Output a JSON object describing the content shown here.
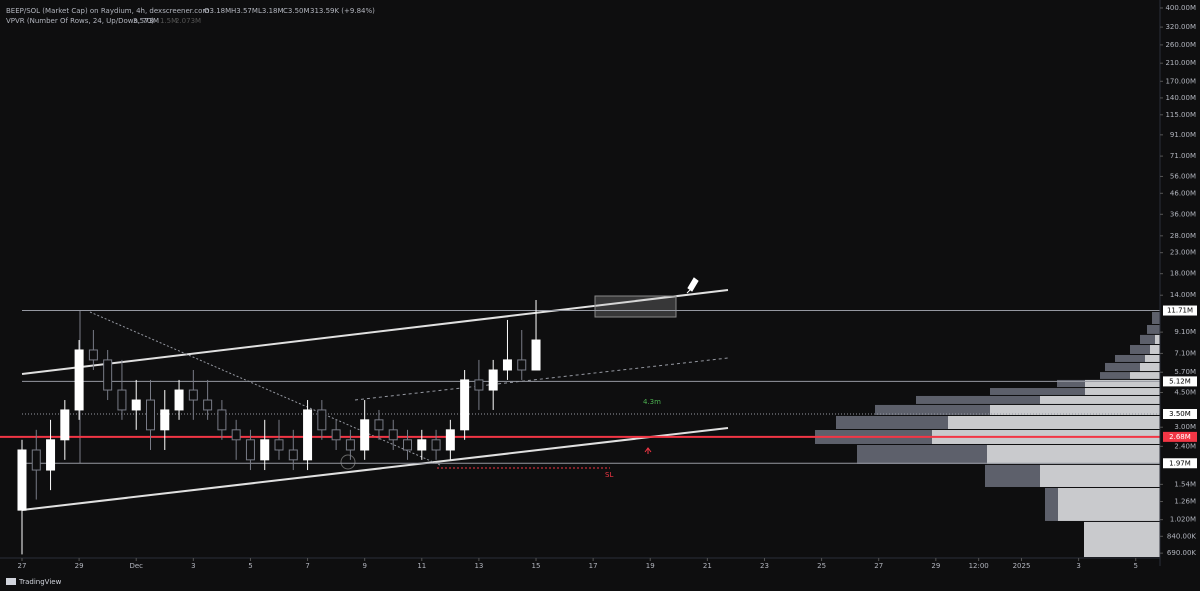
{
  "chart_data": {
    "type": "candlestick",
    "header": {
      "symbol": "BEEP/SOL (Market Cap) on Raydium, 4h, dexscreener.com",
      "open": "O3.18M",
      "high": "H3.57M",
      "low": "L3.18M",
      "close": "C3.50M",
      "change": "313.59K (+9.84%)"
    },
    "indicator": {
      "name": "VPVR (Number Of Rows, 24, Up/Down, 70)",
      "values": [
        "3.573M",
        "1.5M",
        "2.073M"
      ]
    },
    "brand": "TradingView",
    "log_scale": true,
    "grid": false,
    "up_color": "#ffffff",
    "down_color": "#787b86",
    "ylim": [
      652000,
      439000000
    ],
    "xlim": [
      -0.77,
      39.85
    ],
    "yticks": [
      {
        "value": 400000000,
        "label": "400.00M"
      },
      {
        "value": 320000000,
        "label": "320.00M"
      },
      {
        "value": 260000000,
        "label": "260.00M"
      },
      {
        "value": 210000000,
        "label": "210.00M"
      },
      {
        "value": 170000000,
        "label": "170.00M"
      },
      {
        "value": 140000000,
        "label": "140.00M"
      },
      {
        "value": 115000000,
        "label": "115.00M"
      },
      {
        "value": 91000000,
        "label": "91.00M"
      },
      {
        "value": 71000000,
        "label": "71.00M"
      },
      {
        "value": 56000000,
        "label": "56.00M"
      },
      {
        "value": 46000000,
        "label": "46.00M"
      },
      {
        "value": 36000000,
        "label": "36.00M"
      },
      {
        "value": 28000000,
        "label": "28.00M"
      },
      {
        "value": 23000000,
        "label": "23.00M"
      },
      {
        "value": 18000000,
        "label": "18.00M"
      },
      {
        "value": 14000000,
        "label": "14.00M"
      },
      {
        "value": 9100000,
        "label": "9.10M"
      },
      {
        "value": 7100000,
        "label": "7.10M"
      },
      {
        "value": 5700000,
        "label": "5.70M"
      },
      {
        "value": 4500000,
        "label": "4.50M"
      },
      {
        "value": 3000000,
        "label": "3.00M"
      },
      {
        "value": 2400000,
        "label": "2.40M"
      },
      {
        "value": 1540000,
        "label": "1.54M"
      },
      {
        "value": 1260000,
        "label": "1.26M"
      },
      {
        "value": 1020000,
        "label": "1.020M"
      },
      {
        "value": 840000,
        "label": "840.00K"
      },
      {
        "value": 690000,
        "label": "690.00K"
      }
    ],
    "xticks": [
      {
        "value": 0,
        "label": "27"
      },
      {
        "value": 2,
        "label": "29"
      },
      {
        "value": 4,
        "label": "Dec"
      },
      {
        "value": 6,
        "label": "3"
      },
      {
        "value": 8,
        "label": "5"
      },
      {
        "value": 10,
        "label": "7"
      },
      {
        "value": 12,
        "label": "9"
      },
      {
        "value": 14,
        "label": "11"
      },
      {
        "value": 16,
        "label": "13"
      },
      {
        "value": 18,
        "label": "15"
      },
      {
        "value": 20,
        "label": "17"
      },
      {
        "value": 22,
        "label": "19"
      },
      {
        "value": 24,
        "label": "21"
      },
      {
        "value": 26,
        "label": "23"
      },
      {
        "value": 28,
        "label": "25"
      },
      {
        "value": 30,
        "label": "27"
      },
      {
        "value": 32,
        "label": "29"
      },
      {
        "value": 33.5,
        "label": "12:00"
      },
      {
        "value": 35,
        "label": "2025"
      },
      {
        "value": 37,
        "label": "3"
      },
      {
        "value": 39,
        "label": "5"
      }
    ],
    "x": [
      0,
      0.5,
      1,
      1.5,
      2,
      2.5,
      3,
      3.5,
      4,
      4.5,
      5,
      5.5,
      6,
      6.5,
      7,
      7.5,
      8,
      8.5,
      9,
      9.5,
      10,
      10.5,
      11,
      11.5,
      12,
      12.5,
      13,
      13.5,
      14,
      14.5,
      15,
      15.5,
      16,
      16.5,
      17,
      17.5,
      18
    ],
    "open": [
      1140000,
      2300000,
      1820000,
      2590000,
      3670000,
      7390000,
      6580000,
      4630000,
      3670000,
      4120000,
      2910000,
      3670000,
      4630000,
      4120000,
      3670000,
      2910000,
      2590000,
      2050000,
      2590000,
      2300000,
      2050000,
      3670000,
      2910000,
      2590000,
      2300000,
      3270000,
      2910000,
      2590000,
      2300000,
      2590000,
      2300000,
      2910000,
      5210000,
      4630000,
      5850000,
      6580000,
      5850000
    ],
    "high": [
      2590000,
      2910000,
      3270000,
      4120000,
      8300000,
      9330000,
      7390000,
      6580000,
      5210000,
      5210000,
      4630000,
      5210000,
      5850000,
      5210000,
      4120000,
      3270000,
      2910000,
      3270000,
      3270000,
      2910000,
      4120000,
      4120000,
      3270000,
      2910000,
      4120000,
      3670000,
      3270000,
      2910000,
      2910000,
      2910000,
      3270000,
      5850000,
      6580000,
      6580000,
      10490000,
      9330000,
      13240000
    ],
    "low": [
      680000,
      1290000,
      1440000,
      2050000,
      3270000,
      5850000,
      4120000,
      3270000,
      2910000,
      2300000,
      2300000,
      3270000,
      3270000,
      3270000,
      2590000,
      2050000,
      1820000,
      1820000,
      2050000,
      1820000,
      1820000,
      2590000,
      2300000,
      2050000,
      2050000,
      2590000,
      2300000,
      2050000,
      2050000,
      2050000,
      2050000,
      2590000,
      3670000,
      3670000,
      5210000,
      5210000,
      5850000
    ],
    "close": [
      2300000,
      1820000,
      2590000,
      3670000,
      7390000,
      6580000,
      4630000,
      3670000,
      4120000,
      2910000,
      3670000,
      4630000,
      4120000,
      3670000,
      2910000,
      2590000,
      2050000,
      2590000,
      2300000,
      2050000,
      3670000,
      2910000,
      2590000,
      2300000,
      3270000,
      2910000,
      2590000,
      2300000,
      2590000,
      2300000,
      2910000,
      5210000,
      4630000,
      5850000,
      6580000,
      5850000,
      8300000
    ],
    "price_lines": [
      {
        "value": 11710000,
        "label": "11.71M",
        "color": "#ffffff",
        "style": "solid"
      },
      {
        "value": 5120000,
        "label": "5.12M",
        "color": "#ffffff",
        "style": "solid"
      },
      {
        "value": 3500000,
        "label": "3.50M",
        "color": "#ffffff",
        "style": "dotted"
      },
      {
        "value": 2680000,
        "label": "2.68M",
        "color": "#f23645",
        "style": "solid"
      },
      {
        "value": 1970000,
        "label": "1.97M",
        "color": "#ffffff",
        "style": "solid"
      }
    ],
    "volume_profile": {
      "bins": [
        652000,
        993000,
        1476000,
        1932000,
        2438000,
        2904000,
        3420000,
        3890000,
        4320000,
        4740000,
        5210000,
        5710000,
        6350000,
        6970000,
        7830000,
        8810000,
        9890000,
        11510000
      ],
      "up": [
        76,
        102,
        120,
        173,
        228,
        212,
        170,
        120,
        75,
        75,
        30,
        20,
        15,
        10,
        5,
        0,
        0
      ],
      "down": [
        0,
        13,
        55,
        130,
        117,
        112,
        115,
        124,
        95,
        28,
        30,
        35,
        30,
        20,
        15,
        13,
        8
      ],
      "up_color": "#c9cacd",
      "down_color": "#5d606b"
    },
    "annotations": [
      {
        "text": "4.3m",
        "color": "#4caf50"
      },
      {
        "text": "SL",
        "color": "#f23645"
      }
    ]
  }
}
